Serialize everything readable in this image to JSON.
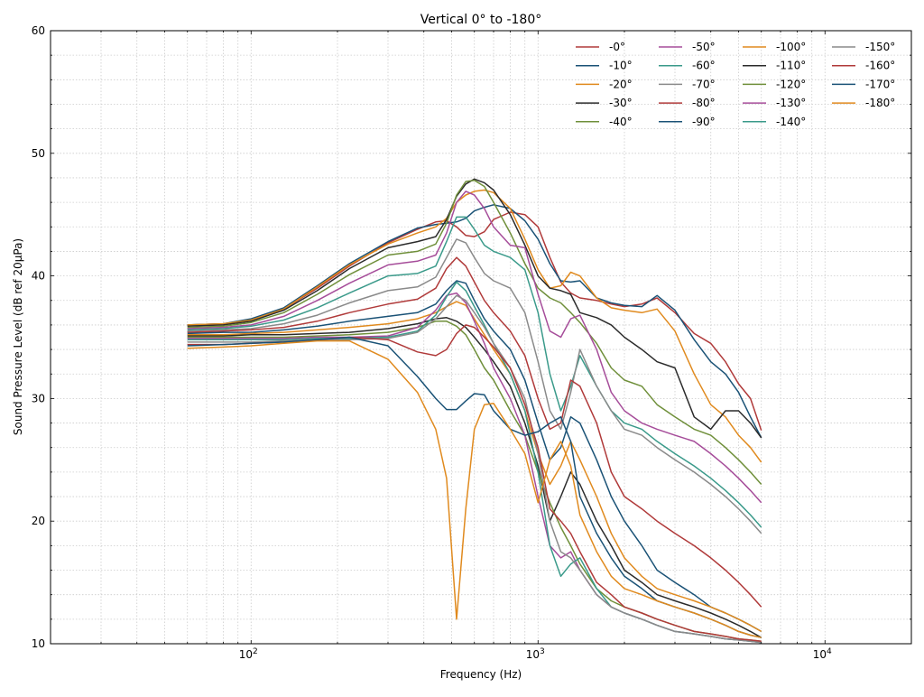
{
  "chart_data": {
    "type": "line",
    "title": "Vertical 0° to -180°",
    "xlabel": "Frequency (Hz)",
    "ylabel": "Sound Pressure Level (dB ref 20µPa)",
    "xscale": "log",
    "xlim": [
      20,
      20000
    ],
    "ylim": [
      10,
      60
    ],
    "grid": true,
    "legend_position": "top-right",
    "x_ticks": [
      {
        "value": 100,
        "base": "10",
        "exp": "2"
      },
      {
        "value": 1000,
        "base": "10",
        "exp": "3"
      },
      {
        "value": 10000,
        "base": "10",
        "exp": "4"
      }
    ],
    "y_ticks": [
      "10",
      "20",
      "30",
      "40",
      "50",
      "60"
    ],
    "x": [
      60,
      80,
      100,
      130,
      170,
      220,
      300,
      380,
      440,
      480,
      520,
      560,
      600,
      650,
      700,
      800,
      900,
      1000,
      1100,
      1200,
      1300,
      1400,
      1600,
      1800,
      2000,
      2300,
      2600,
      3000,
      3500,
      4000,
      4500,
      5000,
      5500,
      6000
    ],
    "series": [
      {
        "name": "-0°",
        "color": "#b03a3a",
        "values": [
          36.0,
          36.1,
          36.4,
          37.3,
          39.0,
          40.8,
          42.7,
          43.8,
          44.4,
          44.5,
          44.0,
          43.3,
          43.2,
          43.6,
          44.6,
          45.2,
          45.0,
          44.0,
          41.5,
          39.5,
          38.6,
          38.2,
          38.0,
          37.7,
          37.5,
          37.7,
          38.2,
          37.0,
          35.3,
          34.5,
          33.0,
          31.2,
          30.0,
          27.4
        ]
      },
      {
        "name": "-10°",
        "color": "#1a5276",
        "values": [
          36.0,
          36.1,
          36.5,
          37.4,
          39.2,
          41.0,
          42.8,
          43.9,
          44.2,
          44.3,
          44.4,
          44.7,
          45.3,
          45.6,
          45.8,
          45.5,
          44.5,
          43.0,
          41.0,
          39.6,
          39.5,
          39.6,
          38.2,
          37.8,
          37.6,
          37.5,
          38.4,
          37.2,
          34.8,
          33.0,
          32.0,
          30.5,
          28.5,
          26.8
        ]
      },
      {
        "name": "-20°",
        "color": "#e08a1e",
        "values": [
          36.0,
          36.1,
          36.4,
          37.3,
          39.1,
          40.9,
          42.6,
          43.5,
          44.0,
          44.7,
          46.0,
          46.6,
          46.9,
          47.0,
          46.8,
          45.5,
          43.0,
          40.5,
          39.0,
          39.2,
          40.3,
          40.0,
          38.2,
          37.4,
          37.2,
          37.0,
          37.3,
          35.5,
          32.0,
          29.5,
          28.5,
          27.0,
          26.0,
          24.8
        ]
      },
      {
        "name": "-30°",
        "color": "#2b2b2b",
        "values": [
          35.9,
          36.0,
          36.3,
          37.2,
          38.8,
          40.6,
          42.3,
          42.8,
          43.2,
          44.6,
          46.5,
          47.5,
          47.9,
          47.6,
          47.0,
          45.0,
          42.5,
          40.0,
          39.0,
          38.8,
          38.5,
          37.0,
          36.6,
          36.0,
          35.0,
          34.0,
          33.0,
          32.5,
          28.5,
          27.5,
          29.0,
          29.0,
          28.0,
          26.8
        ]
      },
      {
        "name": "-40°",
        "color": "#6f8f3a",
        "values": [
          35.8,
          35.9,
          36.2,
          37.0,
          38.5,
          40.1,
          41.7,
          42.0,
          42.6,
          44.3,
          46.6,
          47.7,
          47.8,
          47.3,
          46.0,
          43.5,
          41.0,
          39.0,
          38.2,
          37.8,
          37.0,
          36.2,
          34.5,
          32.5,
          31.5,
          31.0,
          29.5,
          28.5,
          27.5,
          27.0,
          26.0,
          25.0,
          24.0,
          23.0
        ]
      },
      {
        "name": "-50°",
        "color": "#a64d9a",
        "values": [
          35.7,
          35.8,
          36.0,
          36.7,
          38.0,
          39.4,
          40.9,
          41.2,
          41.7,
          43.5,
          46.0,
          46.9,
          46.6,
          45.5,
          44.0,
          42.5,
          42.3,
          38.5,
          35.5,
          35.0,
          36.5,
          36.8,
          34.0,
          30.5,
          29.0,
          28.0,
          27.5,
          27.0,
          26.5,
          25.5,
          24.5,
          23.5,
          22.5,
          21.5
        ]
      },
      {
        "name": "-60°",
        "color": "#3a9a8a",
        "values": [
          35.6,
          35.7,
          35.9,
          36.4,
          37.4,
          38.6,
          40.0,
          40.2,
          40.8,
          42.8,
          44.8,
          44.8,
          43.8,
          42.5,
          42.0,
          41.5,
          40.5,
          37.0,
          32.0,
          29.0,
          31.0,
          33.5,
          31.0,
          29.0,
          28.0,
          27.5,
          26.5,
          25.5,
          24.5,
          23.5,
          22.5,
          21.5,
          20.5,
          19.5
        ]
      },
      {
        "name": "-70°",
        "color": "#8a8a8a",
        "values": [
          35.5,
          35.6,
          35.7,
          36.1,
          36.8,
          37.8,
          38.8,
          39.1,
          39.9,
          41.5,
          43.0,
          42.7,
          41.5,
          40.2,
          39.6,
          39.0,
          37.0,
          33.0,
          29.0,
          27.5,
          30.5,
          34.0,
          31.0,
          29.0,
          27.5,
          27.0,
          26.0,
          25.0,
          24.0,
          23.0,
          22.0,
          21.0,
          20.0,
          19.0
        ]
      },
      {
        "name": "-80°",
        "color": "#b03a3a",
        "values": [
          35.4,
          35.5,
          35.6,
          35.8,
          36.3,
          37.0,
          37.7,
          38.1,
          39.0,
          40.6,
          41.5,
          40.8,
          39.5,
          38.0,
          37.0,
          35.5,
          33.5,
          30.0,
          27.5,
          28.0,
          31.5,
          31.0,
          28.0,
          24.0,
          22.0,
          21.0,
          20.0,
          19.0,
          18.0,
          17.0,
          16.0,
          15.0,
          14.0,
          13.0
        ]
      },
      {
        "name": "-90°",
        "color": "#1a5276",
        "values": [
          35.3,
          35.4,
          35.4,
          35.6,
          35.9,
          36.3,
          36.7,
          37.0,
          37.7,
          38.8,
          39.6,
          39.4,
          38.0,
          36.5,
          35.5,
          34.0,
          31.5,
          28.0,
          25.0,
          26.0,
          28.5,
          28.0,
          25.0,
          22.0,
          20.0,
          18.0,
          16.0,
          15.0,
          14.0,
          13.0,
          12.5,
          12.0,
          11.5,
          11.0
        ]
      },
      {
        "name": "-100°",
        "color": "#e08a1e",
        "values": [
          35.2,
          35.2,
          35.3,
          35.4,
          35.6,
          35.8,
          36.1,
          36.5,
          37.0,
          37.5,
          37.9,
          37.6,
          36.5,
          35.2,
          34.0,
          32.0,
          29.0,
          25.5,
          23.0,
          24.5,
          26.5,
          25.0,
          22.0,
          19.0,
          17.0,
          15.5,
          14.5,
          14.0,
          13.5,
          13.0,
          12.5,
          12.0,
          11.5,
          11.0
        ]
      },
      {
        "name": "-110°",
        "color": "#2b2b2b",
        "values": [
          35.1,
          35.1,
          35.2,
          35.2,
          35.3,
          35.4,
          35.7,
          36.1,
          36.5,
          36.6,
          36.3,
          35.8,
          35.0,
          34.0,
          33.0,
          31.0,
          28.0,
          24.5,
          20.0,
          22.0,
          24.0,
          23.0,
          20.0,
          18.0,
          16.0,
          15.0,
          14.0,
          13.5,
          13.0,
          12.5,
          12.0,
          11.5,
          11.0,
          10.5
        ]
      },
      {
        "name": "-120°",
        "color": "#6f8f3a",
        "values": [
          35.0,
          35.0,
          35.0,
          35.0,
          35.1,
          35.2,
          35.4,
          35.8,
          36.3,
          36.3,
          35.9,
          35.2,
          34.0,
          32.5,
          31.5,
          29.0,
          27.0,
          24.0,
          21.5,
          19.5,
          18.0,
          16.5,
          14.5,
          13.5,
          13.0,
          12.5,
          12.0,
          11.5,
          11.0,
          10.8,
          10.6,
          10.4,
          10.3,
          10.2
        ]
      },
      {
        "name": "-130°",
        "color": "#a64d9a",
        "values": [
          34.9,
          34.9,
          34.9,
          34.9,
          35.0,
          35.0,
          35.1,
          35.8,
          37.2,
          38.4,
          38.6,
          37.8,
          36.3,
          34.5,
          32.5,
          30.0,
          27.0,
          22.0,
          18.0,
          17.0,
          17.5,
          16.0,
          14.0,
          13.0,
          12.5,
          12.0,
          11.5,
          11.0,
          10.8,
          10.6,
          10.4,
          10.3,
          10.2,
          10.1
        ]
      },
      {
        "name": "-140°",
        "color": "#3a9a8a",
        "values": [
          34.8,
          34.8,
          34.8,
          34.8,
          34.9,
          34.9,
          35.0,
          35.5,
          36.8,
          38.3,
          39.5,
          38.8,
          37.5,
          36.0,
          34.5,
          32.0,
          29.0,
          24.0,
          18.0,
          15.5,
          16.5,
          17.0,
          14.5,
          13.0,
          12.5,
          12.0,
          11.5,
          11.0,
          10.8,
          10.6,
          10.4,
          10.3,
          10.2,
          10.1
        ]
      },
      {
        "name": "-150°",
        "color": "#8a8a8a",
        "values": [
          34.6,
          34.6,
          34.6,
          34.7,
          34.8,
          34.8,
          34.9,
          35.4,
          36.5,
          37.5,
          38.4,
          38.0,
          37.0,
          35.8,
          34.5,
          32.5,
          30.0,
          25.5,
          20.0,
          17.5,
          17.0,
          16.0,
          14.0,
          13.0,
          12.5,
          12.0,
          11.5,
          11.0,
          10.8,
          10.6,
          10.4,
          10.3,
          10.2,
          10.1
        ]
      },
      {
        "name": "-160°",
        "color": "#b03a3a",
        "values": [
          34.4,
          34.4,
          34.5,
          34.6,
          34.8,
          35.0,
          34.8,
          33.8,
          33.5,
          34.0,
          35.3,
          36.0,
          35.8,
          35.0,
          34.2,
          32.5,
          29.5,
          26.0,
          21.0,
          20.0,
          19.0,
          17.5,
          15.0,
          14.0,
          13.0,
          12.5,
          12.0,
          11.5,
          11.0,
          10.8,
          10.6,
          10.4,
          10.3,
          10.2
        ]
      },
      {
        "name": "-170°",
        "color": "#1a5276",
        "values": [
          34.3,
          34.4,
          34.5,
          34.6,
          34.8,
          35.0,
          34.3,
          31.8,
          30.0,
          29.1,
          29.1,
          29.8,
          30.4,
          30.3,
          29.0,
          27.5,
          27.0,
          27.3,
          28.0,
          28.5,
          26.5,
          22.0,
          19.0,
          17.0,
          15.5,
          14.5,
          13.5,
          13.0,
          12.5,
          12.0,
          11.5,
          11.0,
          10.7,
          10.5
        ]
      },
      {
        "name": "-180°",
        "color": "#e08a1e",
        "values": [
          34.1,
          34.2,
          34.3,
          34.5,
          34.7,
          34.7,
          33.2,
          30.5,
          27.5,
          23.5,
          12.0,
          21.0,
          27.5,
          29.5,
          29.6,
          27.5,
          25.5,
          21.5,
          25.0,
          26.5,
          24.5,
          20.5,
          17.5,
          15.5,
          14.5,
          14.0,
          13.5,
          13.0,
          12.5,
          12.0,
          11.5,
          11.0,
          10.7,
          10.5
        ]
      }
    ]
  }
}
